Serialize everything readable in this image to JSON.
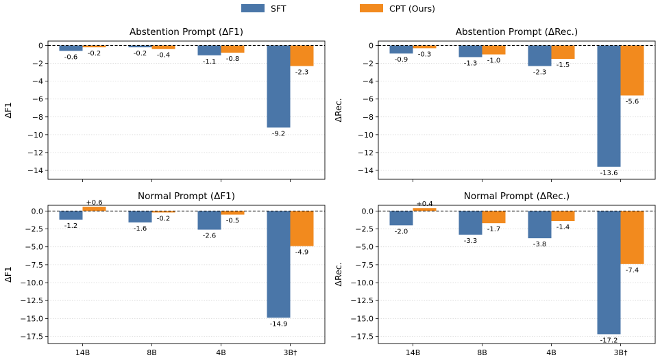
{
  "legend": {
    "placement": "top-center",
    "items": [
      {
        "label": "SFT",
        "color": "#4a76a8"
      },
      {
        "label": "CPT (Ours)",
        "color": "#f28a1e"
      }
    ]
  },
  "chart_data": [
    {
      "type": "bar",
      "title": "Abstention Prompt (ΔF1)",
      "ylabel": "ΔF1",
      "categories": [
        "14B",
        "8B",
        "4B",
        "3B†"
      ],
      "ylim": [
        -15,
        0.5
      ],
      "yticks": [
        0,
        -2,
        -4,
        -6,
        -8,
        -10,
        -12,
        -14
      ],
      "ytick_labels": [
        "0",
        "−2",
        "−4",
        "−6",
        "−8",
        "−10",
        "−12",
        "−14"
      ],
      "show_xticks": false,
      "grid": "horizontal-dotted",
      "baseline": "dashed at 0",
      "series": [
        {
          "name": "SFT",
          "values": [
            -0.6,
            -0.2,
            -1.1,
            -9.2
          ],
          "labels": [
            "-0.6",
            "-0.2",
            "-1.1",
            "-9.2"
          ]
        },
        {
          "name": "CPT (Ours)",
          "values": [
            -0.2,
            -0.4,
            -0.8,
            -2.3
          ],
          "labels": [
            "-0.2",
            "-0.4",
            "-0.8",
            "-2.3"
          ]
        }
      ]
    },
    {
      "type": "bar",
      "title": "Abstention Prompt (ΔRec.)",
      "ylabel": "ΔRec.",
      "categories": [
        "14B",
        "8B",
        "4B",
        "3B†"
      ],
      "ylim": [
        -15,
        0.5
      ],
      "yticks": [
        0,
        -2,
        -4,
        -6,
        -8,
        -10,
        -12,
        -14
      ],
      "ytick_labels": [
        "0",
        "−2",
        "−4",
        "−6",
        "−8",
        "−10",
        "−12",
        "−14"
      ],
      "show_xticks": false,
      "grid": "horizontal-dotted",
      "baseline": "dashed at 0",
      "series": [
        {
          "name": "SFT",
          "values": [
            -0.9,
            -1.3,
            -2.3,
            -13.6
          ],
          "labels": [
            "-0.9",
            "-1.3",
            "-2.3",
            "-13.6"
          ]
        },
        {
          "name": "CPT (Ours)",
          "values": [
            -0.3,
            -1.0,
            -1.5,
            -5.6
          ],
          "labels": [
            "-0.3",
            "-1.0",
            "-1.5",
            "-5.6"
          ]
        }
      ]
    },
    {
      "type": "bar",
      "title": "Normal Prompt (ΔF1)",
      "ylabel": "ΔF1",
      "categories": [
        "14B",
        "8B",
        "4B",
        "3B†"
      ],
      "ylim": [
        -18.5,
        0.8
      ],
      "yticks": [
        0,
        -2.5,
        -5,
        -7.5,
        -10,
        -12.5,
        -15,
        -17.5
      ],
      "ytick_labels": [
        "0.0",
        "−2.5",
        "−5.0",
        "−7.5",
        "−10.0",
        "−12.5",
        "−15.0",
        "−17.5"
      ],
      "show_xticks": true,
      "grid": "horizontal-dotted",
      "baseline": "dashed at 0",
      "series": [
        {
          "name": "SFT",
          "values": [
            -1.2,
            -1.6,
            -2.6,
            -14.9
          ],
          "labels": [
            "-1.2",
            "-1.6",
            "-2.6",
            "-14.9"
          ]
        },
        {
          "name": "CPT (Ours)",
          "values": [
            0.6,
            -0.2,
            -0.5,
            -4.9
          ],
          "labels": [
            "+0.6",
            "-0.2",
            "-0.5",
            "-4.9"
          ]
        }
      ]
    },
    {
      "type": "bar",
      "title": "Normal Prompt (ΔRec.)",
      "ylabel": "ΔRec.",
      "categories": [
        "14B",
        "8B",
        "4B",
        "3B†"
      ],
      "ylim": [
        -18.5,
        0.8
      ],
      "yticks": [
        0,
        -2.5,
        -5,
        -7.5,
        -10,
        -12.5,
        -15,
        -17.5
      ],
      "ytick_labels": [
        "0.0",
        "−2.5",
        "−5.0",
        "−7.5",
        "−10.0",
        "−12.5",
        "−15.0",
        "−17.5"
      ],
      "show_xticks": true,
      "grid": "horizontal-dotted",
      "baseline": "dashed at 0",
      "series": [
        {
          "name": "SFT",
          "values": [
            -2.0,
            -3.3,
            -3.8,
            -17.2
          ],
          "labels": [
            "-2.0",
            "-3.3",
            "-3.8",
            "-17.2"
          ]
        },
        {
          "name": "CPT (Ours)",
          "values": [
            0.4,
            -1.7,
            -1.4,
            -7.4
          ],
          "labels": [
            "+0.4",
            "-1.7",
            "-1.4",
            "-7.4"
          ]
        }
      ]
    }
  ]
}
